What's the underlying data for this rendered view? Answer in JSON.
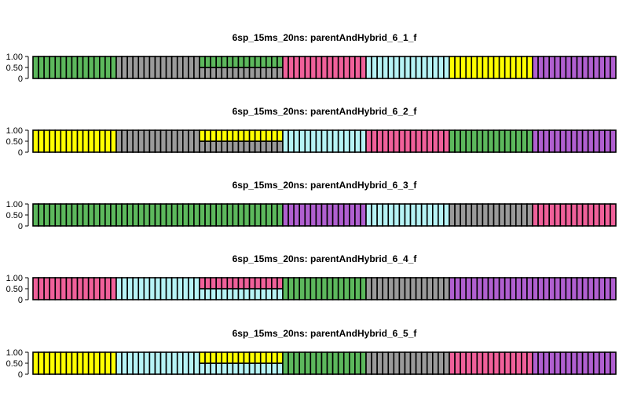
{
  "colors": {
    "green": "#5cb85c",
    "gray": "#9a9a9a",
    "pink": "#f0609a",
    "cyan": "#b6f3f5",
    "yellow": "#ffff00",
    "purple": "#b05fd0"
  },
  "chart_data": [
    {
      "type": "bar",
      "stacked": true,
      "title": "6sp_15ms_20ns: parentAndHybrid_6_1_f",
      "xlabel": "",
      "ylabel": "",
      "ylim": [
        0,
        1
      ],
      "yticks": [
        "1.00",
        "0.50",
        "0"
      ],
      "n_individuals": 105,
      "segments": [
        {
          "count": 15,
          "colors": [
            "green"
          ],
          "values": [
            1.0
          ]
        },
        {
          "count": 15,
          "colors": [
            "gray"
          ],
          "values": [
            1.0
          ]
        },
        {
          "count": 15,
          "colors": [
            "gray",
            "green"
          ],
          "values": [
            0.5,
            0.5
          ]
        },
        {
          "count": 15,
          "colors": [
            "pink"
          ],
          "values": [
            1.0
          ]
        },
        {
          "count": 15,
          "colors": [
            "cyan"
          ],
          "values": [
            1.0
          ]
        },
        {
          "count": 15,
          "colors": [
            "yellow"
          ],
          "values": [
            1.0
          ]
        },
        {
          "count": 15,
          "colors": [
            "purple"
          ],
          "values": [
            1.0
          ]
        }
      ]
    },
    {
      "type": "bar",
      "stacked": true,
      "title": "6sp_15ms_20ns: parentAndHybrid_6_2_f",
      "xlabel": "",
      "ylabel": "",
      "ylim": [
        0,
        1
      ],
      "yticks": [
        "1.00",
        "0.50",
        "0"
      ],
      "n_individuals": 105,
      "segments": [
        {
          "count": 15,
          "colors": [
            "yellow"
          ],
          "values": [
            1.0
          ]
        },
        {
          "count": 15,
          "colors": [
            "gray"
          ],
          "values": [
            1.0
          ]
        },
        {
          "count": 15,
          "colors": [
            "gray",
            "yellow"
          ],
          "values": [
            0.5,
            0.5
          ]
        },
        {
          "count": 15,
          "colors": [
            "cyan"
          ],
          "values": [
            1.0
          ]
        },
        {
          "count": 15,
          "colors": [
            "pink"
          ],
          "values": [
            1.0
          ]
        },
        {
          "count": 15,
          "colors": [
            "green"
          ],
          "values": [
            1.0
          ]
        },
        {
          "count": 15,
          "colors": [
            "purple"
          ],
          "values": [
            1.0
          ]
        }
      ]
    },
    {
      "type": "bar",
      "stacked": true,
      "title": "6sp_15ms_20ns: parentAndHybrid_6_3_f",
      "xlabel": "",
      "ylabel": "",
      "ylim": [
        0,
        1
      ],
      "yticks": [
        "1.00",
        "0.50",
        "0"
      ],
      "n_individuals": 105,
      "segments": [
        {
          "count": 45,
          "colors": [
            "green"
          ],
          "values": [
            1.0
          ]
        },
        {
          "count": 15,
          "colors": [
            "purple"
          ],
          "values": [
            1.0
          ]
        },
        {
          "count": 15,
          "colors": [
            "cyan"
          ],
          "values": [
            1.0
          ]
        },
        {
          "count": 15,
          "colors": [
            "gray"
          ],
          "values": [
            1.0
          ]
        },
        {
          "count": 15,
          "colors": [
            "pink"
          ],
          "values": [
            1.0
          ]
        }
      ]
    },
    {
      "type": "bar",
      "stacked": true,
      "title": "6sp_15ms_20ns: parentAndHybrid_6_4_f",
      "xlabel": "",
      "ylabel": "",
      "ylim": [
        0,
        1
      ],
      "yticks": [
        "1.00",
        "0.50",
        "0"
      ],
      "n_individuals": 105,
      "segments": [
        {
          "count": 15,
          "colors": [
            "pink"
          ],
          "values": [
            1.0
          ]
        },
        {
          "count": 15,
          "colors": [
            "cyan"
          ],
          "values": [
            1.0
          ]
        },
        {
          "count": 15,
          "colors": [
            "cyan",
            "pink"
          ],
          "values": [
            0.5,
            0.5
          ]
        },
        {
          "count": 15,
          "colors": [
            "green"
          ],
          "values": [
            1.0
          ]
        },
        {
          "count": 15,
          "colors": [
            "gray"
          ],
          "values": [
            1.0
          ]
        },
        {
          "count": 30,
          "colors": [
            "purple"
          ],
          "values": [
            1.0
          ]
        }
      ]
    },
    {
      "type": "bar",
      "stacked": true,
      "title": "6sp_15ms_20ns: parentAndHybrid_6_5_f",
      "xlabel": "",
      "ylabel": "",
      "ylim": [
        0,
        1
      ],
      "yticks": [
        "1.00",
        "0.50",
        "0"
      ],
      "n_individuals": 105,
      "segments": [
        {
          "count": 15,
          "colors": [
            "yellow"
          ],
          "values": [
            1.0
          ]
        },
        {
          "count": 15,
          "colors": [
            "cyan"
          ],
          "values": [
            1.0
          ]
        },
        {
          "count": 15,
          "colors": [
            "cyan",
            "yellow"
          ],
          "values": [
            0.5,
            0.5
          ]
        },
        {
          "count": 15,
          "colors": [
            "green"
          ],
          "values": [
            1.0
          ]
        },
        {
          "count": 15,
          "colors": [
            "gray"
          ],
          "values": [
            1.0
          ]
        },
        {
          "count": 15,
          "colors": [
            "pink"
          ],
          "values": [
            1.0
          ]
        },
        {
          "count": 15,
          "colors": [
            "purple"
          ],
          "values": [
            1.0
          ]
        }
      ]
    }
  ]
}
